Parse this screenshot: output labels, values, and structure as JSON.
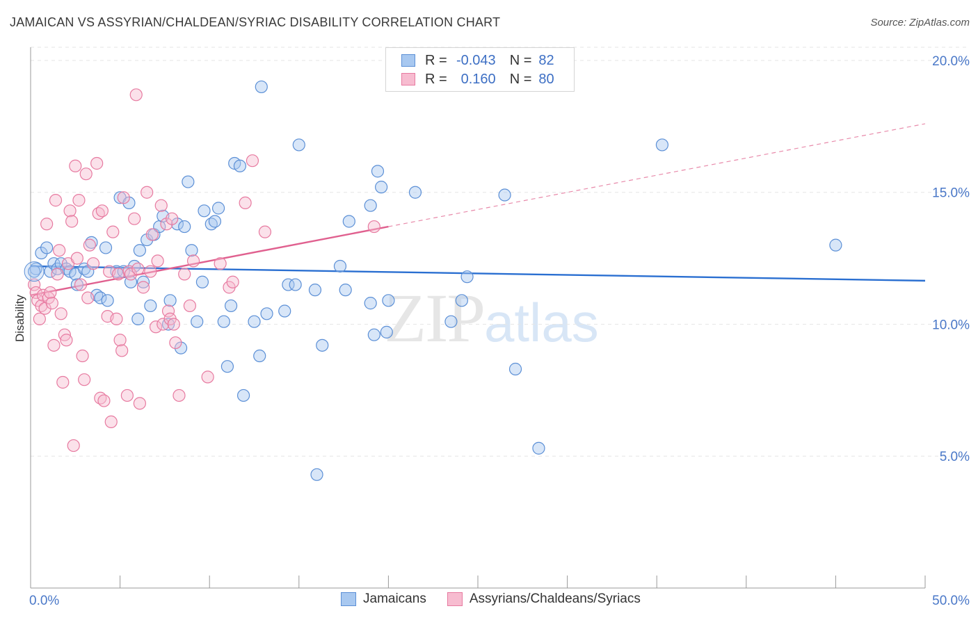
{
  "title": "JAMAICAN VS ASSYRIAN/CHALDEAN/SYRIAC DISABILITY CORRELATION CHART",
  "source": "Source: ZipAtlas.com",
  "watermark": {
    "zip": "ZIP",
    "atlas": "atlas"
  },
  "legend": {
    "rows": [
      {
        "r_label": "R =",
        "r_value": "-0.043",
        "n_label": "N =",
        "n_value": "82",
        "color": "#a8c8f0",
        "border": "#5b8fd6"
      },
      {
        "r_label": "R =",
        "r_value": "0.160",
        "n_label": "N =",
        "n_value": "80",
        "color": "#f7bcd0",
        "border": "#e77aa0"
      }
    ]
  },
  "bottom_legend": {
    "items": [
      "Jamaicans",
      "Assyrians/Chaldeans/Syriacs"
    ]
  },
  "chart_data": {
    "type": "scatter",
    "title": "JAMAICAN VS ASSYRIAN/CHALDEAN/SYRIAC DISABILITY CORRELATION CHART",
    "xlabel": "",
    "ylabel": "Disability",
    "xlim": [
      0,
      50
    ],
    "ylim": [
      0,
      20.5
    ],
    "x_ticks": [
      "0.0%",
      "50.0%"
    ],
    "y_ticks": [
      {
        "v": 5,
        "label": "5.0%"
      },
      {
        "v": 10,
        "label": "10.0%"
      },
      {
        "v": 15,
        "label": "15.0%"
      },
      {
        "v": 20,
        "label": "20.0%"
      }
    ],
    "grid": true,
    "legend_position": "top-center",
    "series": [
      {
        "name": "Jamaicans",
        "color": "#a8c8f0",
        "stroke": "#5b8fd6",
        "trend": {
          "x1": 0.0,
          "y1": 12.2,
          "x2": 50.0,
          "y2": 11.65,
          "color": "#2a6fd1"
        },
        "points": [
          [
            0.3,
            12.1
          ],
          [
            0.6,
            12.7
          ],
          [
            0.9,
            12.9
          ],
          [
            1.1,
            12.0
          ],
          [
            1.3,
            12.3
          ],
          [
            1.5,
            12.1
          ],
          [
            1.7,
            12.3
          ],
          [
            2.0,
            12.1
          ],
          [
            2.2,
            12.0
          ],
          [
            2.5,
            11.9
          ],
          [
            2.6,
            11.5
          ],
          [
            3.0,
            12.1
          ],
          [
            3.2,
            12.0
          ],
          [
            3.4,
            13.1
          ],
          [
            3.7,
            11.1
          ],
          [
            3.9,
            11.0
          ],
          [
            4.2,
            12.9
          ],
          [
            4.3,
            10.9
          ],
          [
            4.8,
            12.0
          ],
          [
            5.0,
            14.8
          ],
          [
            5.2,
            12.0
          ],
          [
            5.5,
            14.6
          ],
          [
            5.6,
            11.6
          ],
          [
            5.8,
            12.2
          ],
          [
            6.0,
            10.2
          ],
          [
            6.1,
            12.8
          ],
          [
            6.3,
            11.6
          ],
          [
            6.5,
            13.2
          ],
          [
            6.7,
            10.7
          ],
          [
            6.9,
            13.4
          ],
          [
            7.2,
            13.7
          ],
          [
            7.4,
            14.1
          ],
          [
            7.7,
            10.0
          ],
          [
            7.8,
            10.9
          ],
          [
            8.2,
            13.8
          ],
          [
            8.4,
            9.1
          ],
          [
            8.6,
            13.7
          ],
          [
            8.8,
            15.4
          ],
          [
            9.0,
            12.8
          ],
          [
            9.3,
            10.1
          ],
          [
            9.6,
            11.6
          ],
          [
            9.7,
            14.3
          ],
          [
            10.1,
            13.8
          ],
          [
            10.3,
            13.9
          ],
          [
            10.5,
            14.4
          ],
          [
            10.8,
            10.1
          ],
          [
            11.0,
            8.4
          ],
          [
            11.2,
            10.7
          ],
          [
            11.4,
            16.1
          ],
          [
            11.7,
            16.0
          ],
          [
            11.9,
            7.3
          ],
          [
            12.5,
            10.1
          ],
          [
            12.8,
            8.8
          ],
          [
            12.9,
            19.0
          ],
          [
            13.2,
            10.4
          ],
          [
            14.2,
            10.5
          ],
          [
            14.4,
            11.5
          ],
          [
            14.8,
            11.5
          ],
          [
            15.0,
            16.8
          ],
          [
            15.9,
            11.3
          ],
          [
            16.0,
            4.3
          ],
          [
            16.3,
            9.2
          ],
          [
            17.3,
            12.2
          ],
          [
            17.6,
            11.3
          ],
          [
            17.8,
            13.9
          ],
          [
            19.0,
            14.5
          ],
          [
            19.0,
            10.8
          ],
          [
            19.2,
            9.6
          ],
          [
            19.4,
            15.8
          ],
          [
            19.6,
            15.2
          ],
          [
            19.9,
            9.7
          ],
          [
            20.0,
            10.9
          ],
          [
            21.5,
            15.0
          ],
          [
            23.5,
            10.1
          ],
          [
            24.1,
            10.9
          ],
          [
            24.4,
            11.8
          ],
          [
            26.5,
            14.9
          ],
          [
            27.1,
            8.3
          ],
          [
            28.4,
            5.3
          ],
          [
            35.3,
            16.8
          ],
          [
            45.0,
            13.0
          ],
          [
            0.2,
            12.0
          ]
        ]
      },
      {
        "name": "Assyrians/Chaldeans/Syriacs",
        "color": "#f7bcd0",
        "stroke": "#e77aa0",
        "trend": {
          "x1": 0.0,
          "y1": 11.1,
          "x2": 20.0,
          "y2": 13.7,
          "color": "#e0608f"
        },
        "trend_dashed": {
          "x1": 20.0,
          "y1": 13.7,
          "x2": 50.0,
          "y2": 17.6,
          "color": "#e88aaa"
        },
        "points": [
          [
            0.2,
            11.5
          ],
          [
            0.3,
            11.2
          ],
          [
            0.4,
            10.9
          ],
          [
            0.5,
            10.2
          ],
          [
            0.6,
            10.7
          ],
          [
            0.7,
            11.1
          ],
          [
            0.8,
            10.6
          ],
          [
            0.9,
            13.8
          ],
          [
            1.0,
            11.0
          ],
          [
            1.1,
            11.2
          ],
          [
            1.2,
            10.8
          ],
          [
            1.3,
            9.2
          ],
          [
            1.4,
            14.7
          ],
          [
            1.5,
            11.9
          ],
          [
            1.6,
            12.8
          ],
          [
            1.7,
            10.4
          ],
          [
            1.8,
            7.8
          ],
          [
            1.9,
            9.6
          ],
          [
            2.0,
            9.4
          ],
          [
            2.1,
            12.3
          ],
          [
            2.2,
            14.3
          ],
          [
            2.3,
            13.9
          ],
          [
            2.4,
            5.4
          ],
          [
            2.5,
            16.0
          ],
          [
            2.6,
            12.5
          ],
          [
            2.7,
            14.7
          ],
          [
            2.8,
            11.5
          ],
          [
            2.9,
            8.8
          ],
          [
            3.0,
            7.9
          ],
          [
            3.1,
            15.7
          ],
          [
            3.2,
            11.0
          ],
          [
            3.3,
            13.0
          ],
          [
            3.5,
            12.3
          ],
          [
            3.7,
            16.1
          ],
          [
            3.8,
            14.2
          ],
          [
            3.9,
            7.2
          ],
          [
            4.0,
            14.3
          ],
          [
            4.1,
            7.1
          ],
          [
            4.3,
            10.3
          ],
          [
            4.4,
            12.0
          ],
          [
            4.5,
            6.3
          ],
          [
            4.6,
            13.5
          ],
          [
            4.8,
            10.2
          ],
          [
            4.9,
            11.9
          ],
          [
            5.0,
            9.4
          ],
          [
            5.1,
            9.0
          ],
          [
            5.2,
            14.8
          ],
          [
            5.4,
            7.3
          ],
          [
            5.5,
            12.0
          ],
          [
            5.6,
            11.9
          ],
          [
            5.8,
            14.0
          ],
          [
            5.9,
            18.7
          ],
          [
            6.0,
            12.1
          ],
          [
            6.1,
            7.0
          ],
          [
            6.3,
            11.4
          ],
          [
            6.5,
            15.0
          ],
          [
            6.7,
            12.0
          ],
          [
            6.8,
            13.4
          ],
          [
            7.0,
            9.9
          ],
          [
            7.1,
            12.4
          ],
          [
            7.3,
            14.5
          ],
          [
            7.4,
            10.0
          ],
          [
            7.6,
            13.8
          ],
          [
            7.7,
            10.5
          ],
          [
            7.8,
            10.2
          ],
          [
            7.9,
            14.0
          ],
          [
            8.0,
            10.0
          ],
          [
            8.1,
            9.3
          ],
          [
            8.3,
            7.3
          ],
          [
            8.6,
            11.9
          ],
          [
            8.9,
            10.7
          ],
          [
            9.1,
            12.4
          ],
          [
            9.9,
            8.0
          ],
          [
            10.6,
            12.3
          ],
          [
            11.1,
            11.4
          ],
          [
            11.3,
            11.6
          ],
          [
            12.0,
            14.6
          ],
          [
            12.4,
            16.2
          ],
          [
            13.1,
            13.5
          ],
          [
            19.2,
            13.7
          ]
        ]
      }
    ]
  }
}
